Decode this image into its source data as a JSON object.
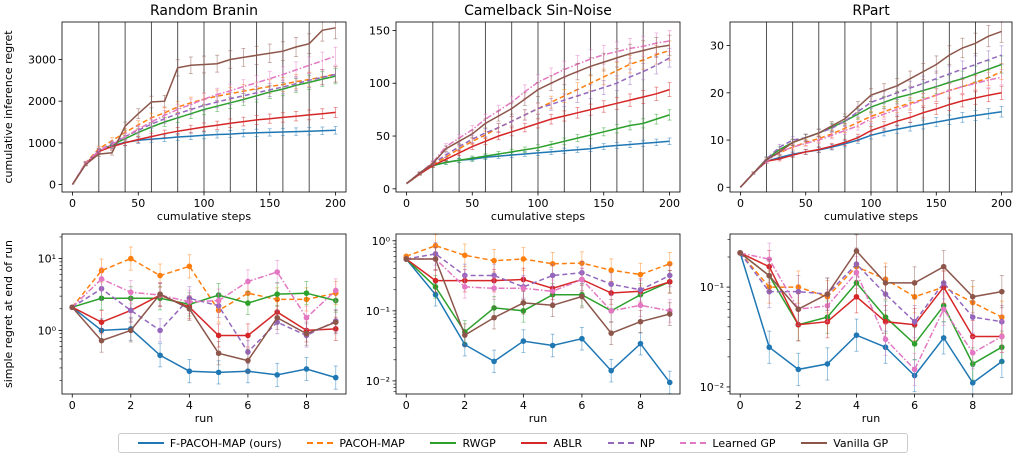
{
  "chart_data": [
    {
      "type": "line",
      "title": "Random Branin",
      "xlabel": "cumulative steps",
      "ylabel": "cumulative inference regret",
      "xlim": [
        -8,
        208
      ],
      "ylim": [
        -180,
        3900
      ],
      "xticks": [
        0,
        50,
        100,
        150,
        200
      ],
      "yticks": [
        0,
        1000,
        2000,
        3000
      ],
      "vlines": [
        20,
        40,
        60,
        80,
        100,
        120,
        140,
        160,
        180
      ],
      "x": [
        0,
        10,
        20,
        30,
        40,
        50,
        60,
        70,
        80,
        90,
        100,
        110,
        120,
        130,
        140,
        150,
        160,
        170,
        180,
        190,
        200
      ],
      "series": [
        {
          "name": "F-PACOH-MAP (ours)",
          "values": [
            0,
            500,
            800,
            930,
            1010,
            1060,
            1090,
            1110,
            1140,
            1160,
            1180,
            1200,
            1210,
            1230,
            1240,
            1250,
            1260,
            1270,
            1280,
            1290,
            1300
          ]
        },
        {
          "name": "PACOH-MAP",
          "values": [
            0,
            520,
            860,
            1050,
            1250,
            1430,
            1600,
            1720,
            1860,
            1960,
            2050,
            2120,
            2180,
            2240,
            2300,
            2350,
            2400,
            2470,
            2520,
            2580,
            2650
          ]
        },
        {
          "name": "RWGP",
          "values": [
            0,
            500,
            800,
            950,
            1100,
            1250,
            1380,
            1500,
            1600,
            1700,
            1800,
            1880,
            1960,
            2040,
            2130,
            2220,
            2290,
            2380,
            2450,
            2530,
            2600
          ]
        },
        {
          "name": "ABLR",
          "values": [
            0,
            500,
            790,
            910,
            1000,
            1080,
            1150,
            1220,
            1280,
            1330,
            1380,
            1420,
            1470,
            1510,
            1550,
            1580,
            1610,
            1640,
            1670,
            1700,
            1730
          ]
        },
        {
          "name": "NP",
          "values": [
            0,
            510,
            820,
            980,
            1150,
            1300,
            1450,
            1580,
            1700,
            1800,
            1900,
            1980,
            2060,
            2130,
            2200,
            2270,
            2340,
            2420,
            2500,
            2570,
            2640
          ]
        },
        {
          "name": "Learned GP",
          "values": [
            0,
            510,
            810,
            960,
            1150,
            1330,
            1500,
            1660,
            1800,
            1920,
            2050,
            2160,
            2250,
            2350,
            2440,
            2540,
            2640,
            2750,
            2860,
            2970,
            3080
          ]
        },
        {
          "name": "Vanilla GP",
          "values": [
            0,
            480,
            730,
            760,
            1400,
            1700,
            1980,
            2000,
            2800,
            2860,
            2880,
            2900,
            3000,
            3050,
            3100,
            3150,
            3200,
            3300,
            3380,
            3700,
            3760
          ]
        }
      ]
    },
    {
      "type": "line",
      "title": "Camelback Sin-Noise",
      "xlabel": "cumulative steps",
      "ylabel": "",
      "xlim": [
        -8,
        208
      ],
      "ylim": [
        -3,
        158
      ],
      "xticks": [
        0,
        50,
        100,
        150,
        200
      ],
      "yticks": [
        0,
        50,
        100,
        150
      ],
      "vlines": [
        20,
        40,
        60,
        80,
        100,
        120,
        140,
        160,
        180
      ],
      "x": [
        0,
        10,
        20,
        30,
        40,
        50,
        60,
        70,
        80,
        90,
        100,
        110,
        120,
        130,
        140,
        150,
        160,
        170,
        180,
        190,
        200
      ],
      "series": [
        {
          "name": "F-PACOH-MAP (ours)",
          "values": [
            5,
            14,
            22,
            25,
            27,
            28,
            30,
            31,
            32,
            33,
            34,
            35,
            36,
            37,
            38,
            40,
            41,
            42,
            43,
            44,
            45
          ]
        },
        {
          "name": "PACOH-MAP",
          "values": [
            5,
            15,
            23,
            30,
            38,
            45,
            51,
            58,
            64,
            70,
            76,
            82,
            88,
            94,
            100,
            106,
            112,
            118,
            122,
            127,
            131
          ]
        },
        {
          "name": "RWGP",
          "values": [
            5,
            14,
            22,
            25,
            27,
            29,
            31,
            33,
            35,
            37,
            39,
            42,
            45,
            48,
            51,
            54,
            57,
            60,
            62,
            66,
            70
          ]
        },
        {
          "name": "ABLR",
          "values": [
            5,
            14,
            22,
            28,
            34,
            40,
            45,
            50,
            54,
            58,
            62,
            66,
            69,
            72,
            75,
            78,
            81,
            84,
            87,
            90,
            94
          ]
        },
        {
          "name": "NP",
          "values": [
            5,
            15,
            24,
            32,
            40,
            47,
            53,
            58,
            64,
            70,
            76,
            80,
            84,
            88,
            92,
            96,
            100,
            106,
            111,
            117,
            124
          ]
        },
        {
          "name": "Learned GP",
          "values": [
            5,
            15,
            25,
            40,
            48,
            56,
            66,
            74,
            82,
            92,
            101,
            107,
            113,
            118,
            123,
            127,
            130,
            133,
            135,
            138,
            140
          ]
        },
        {
          "name": "Vanilla GP",
          "values": [
            5,
            15,
            24,
            38,
            45,
            52,
            62,
            69,
            76,
            85,
            94,
            100,
            106,
            111,
            116,
            120,
            124,
            128,
            131,
            134,
            136
          ]
        }
      ]
    },
    {
      "type": "line",
      "title": "RPart",
      "xlabel": "cumulative steps",
      "ylabel": "",
      "xlim": [
        -8,
        208
      ],
      "ylim": [
        -1,
        35
      ],
      "xticks": [
        0,
        50,
        100,
        150,
        200
      ],
      "yticks": [
        0,
        10,
        20,
        30
      ],
      "vlines": [
        20,
        40,
        60,
        80,
        100,
        120,
        140,
        160,
        180
      ],
      "x": [
        0,
        10,
        20,
        30,
        40,
        50,
        60,
        70,
        80,
        90,
        100,
        110,
        120,
        130,
        140,
        150,
        160,
        170,
        180,
        190,
        200
      ],
      "series": [
        {
          "name": "F-PACOH-MAP (ours)",
          "values": [
            0,
            3,
            5.5,
            6.3,
            7,
            7.5,
            7.9,
            8.5,
            9.2,
            10,
            11,
            11.7,
            12.3,
            12.8,
            13.3,
            13.8,
            14.3,
            14.8,
            15.2,
            15.6,
            16
          ]
        },
        {
          "name": "PACOH-MAP",
          "values": [
            0,
            3,
            6,
            7.3,
            8.5,
            9.5,
            10.3,
            11.3,
            12.5,
            13.7,
            15,
            16,
            17,
            17.8,
            18.6,
            19.5,
            20.5,
            21.3,
            22.2,
            23.2,
            24.5
          ]
        },
        {
          "name": "RWGP",
          "values": [
            0,
            3,
            6,
            8,
            9.5,
            10.5,
            11.5,
            12.7,
            14,
            15.5,
            17,
            18,
            19,
            19.7,
            20.5,
            21.3,
            22.2,
            23,
            24,
            25,
            26
          ]
        },
        {
          "name": "ABLR",
          "values": [
            0,
            3,
            5.5,
            6,
            6.8,
            7.5,
            8,
            8.7,
            9.5,
            10.5,
            12,
            13,
            14,
            14.8,
            15.8,
            16.6,
            17.5,
            18.3,
            18.9,
            19.5,
            20
          ]
        },
        {
          "name": "NP",
          "values": [
            0,
            3,
            6,
            8.5,
            10,
            10.5,
            11.5,
            12.5,
            14,
            16,
            18,
            19,
            20,
            21,
            22,
            23,
            24,
            25,
            26,
            27,
            28
          ]
        },
        {
          "name": "Learned GP",
          "values": [
            0,
            3,
            5.5,
            7.5,
            8.5,
            9.3,
            10,
            11,
            12,
            13,
            14.5,
            15.5,
            16.5,
            17.5,
            18.5,
            19.5,
            20.5,
            21.3,
            22,
            22.7,
            23.3
          ]
        },
        {
          "name": "Vanilla GP",
          "values": [
            0,
            3,
            5.8,
            7.5,
            9.5,
            10.5,
            11.5,
            13,
            14.5,
            17,
            19.5,
            20.5,
            21.5,
            23,
            24.5,
            26,
            28,
            29.5,
            30.5,
            32,
            33
          ]
        }
      ]
    },
    {
      "type": "line",
      "title": "",
      "xlabel": "run",
      "ylabel": "simple regret at end of run",
      "scale": "log",
      "xlim": [
        -0.35,
        9.35
      ],
      "ylim": [
        0.13,
        22
      ],
      "xticks": [
        0,
        2,
        4,
        6,
        8
      ],
      "yticks": [
        1,
        10
      ],
      "ytick_labels": [
        "10⁰",
        "10¹"
      ],
      "x": [
        0,
        1,
        2,
        3,
        4,
        5,
        6,
        7,
        8,
        9
      ],
      "series": [
        {
          "name": "F-PACOH-MAP (ours)",
          "values": [
            2.1,
            1.0,
            1.05,
            0.45,
            0.27,
            0.26,
            0.27,
            0.24,
            0.29,
            0.22
          ]
        },
        {
          "name": "PACOH-MAP",
          "values": [
            2.1,
            6.8,
            10.0,
            5.8,
            7.8,
            1.9,
            3.3,
            2.7,
            2.7,
            3.3
          ]
        },
        {
          "name": "RWGP",
          "values": [
            2.1,
            2.8,
            2.8,
            2.8,
            2.3,
            3.1,
            2.4,
            3.2,
            3.3,
            2.6
          ]
        },
        {
          "name": "ABLR",
          "values": [
            2.1,
            1.3,
            1.9,
            3.1,
            2.1,
            0.85,
            0.85,
            1.8,
            1.0,
            1.05
          ]
        },
        {
          "name": "NP",
          "values": [
            2.1,
            3.8,
            1.9,
            1.0,
            2.8,
            2.2,
            0.5,
            1.3,
            0.85,
            1.35
          ]
        },
        {
          "name": "Learned GP",
          "values": [
            2.1,
            5.2,
            3.4,
            3.1,
            2.5,
            2.6,
            4.8,
            6.5,
            1.5,
            3.6
          ]
        },
        {
          "name": "Vanilla GP",
          "values": [
            2.1,
            0.72,
            1.0,
            3.2,
            2.0,
            0.48,
            0.38,
            1.5,
            0.9,
            1.3
          ]
        }
      ]
    },
    {
      "type": "line",
      "title": "",
      "xlabel": "run",
      "ylabel": "",
      "scale": "log",
      "xlim": [
        -0.35,
        9.35
      ],
      "ylim": [
        0.0065,
        1.25
      ],
      "xticks": [
        0,
        2,
        4,
        6,
        8
      ],
      "yticks": [
        0.01,
        0.1,
        1
      ],
      "ytick_labels": [
        "10⁻²",
        "10⁻¹",
        "10⁰"
      ],
      "x": [
        0,
        1,
        2,
        3,
        4,
        5,
        6,
        7,
        8,
        9
      ],
      "series": [
        {
          "name": "F-PACOH-MAP (ours)",
          "values": [
            0.55,
            0.17,
            0.033,
            0.019,
            0.037,
            0.032,
            0.04,
            0.014,
            0.034,
            0.0095
          ]
        },
        {
          "name": "PACOH-MAP",
          "values": [
            0.6,
            0.85,
            0.62,
            0.52,
            0.55,
            0.47,
            0.48,
            0.38,
            0.33,
            0.47
          ]
        },
        {
          "name": "RWGP",
          "values": [
            0.55,
            0.22,
            0.05,
            0.11,
            0.1,
            0.17,
            0.17,
            0.1,
            0.17,
            0.26
          ]
        },
        {
          "name": "ABLR",
          "values": [
            0.55,
            0.27,
            0.27,
            0.27,
            0.28,
            0.21,
            0.28,
            0.18,
            0.19,
            0.26
          ]
        },
        {
          "name": "NP",
          "values": [
            0.55,
            0.65,
            0.32,
            0.32,
            0.22,
            0.32,
            0.35,
            0.24,
            0.2,
            0.32
          ]
        },
        {
          "name": "Learned GP",
          "values": [
            0.55,
            0.55,
            0.22,
            0.21,
            0.21,
            0.19,
            0.28,
            0.1,
            0.12,
            0.1
          ]
        },
        {
          "name": "Vanilla GP",
          "values": [
            0.55,
            0.55,
            0.045,
            0.08,
            0.13,
            0.12,
            0.16,
            0.048,
            0.07,
            0.09
          ]
        }
      ]
    },
    {
      "type": "line",
      "title": "",
      "xlabel": "run",
      "ylabel": "",
      "scale": "log",
      "xlim": [
        -0.35,
        9.35
      ],
      "ylim": [
        0.0085,
        0.34
      ],
      "xticks": [
        0,
        2,
        4,
        6,
        8
      ],
      "yticks": [
        0.01,
        0.1
      ],
      "ytick_labels": [
        "10⁻²",
        "10⁻¹"
      ],
      "x": [
        0,
        1,
        2,
        3,
        4,
        5,
        6,
        7,
        8,
        9
      ],
      "series": [
        {
          "name": "F-PACOH-MAP (ours)",
          "values": [
            0.22,
            0.025,
            0.015,
            0.017,
            0.033,
            0.025,
            0.013,
            0.031,
            0.011,
            0.018
          ]
        },
        {
          "name": "PACOH-MAP",
          "values": [
            0.22,
            0.1,
            0.1,
            0.08,
            0.16,
            0.12,
            0.08,
            0.1,
            0.07,
            0.05
          ]
        },
        {
          "name": "RWGP",
          "values": [
            0.22,
            0.13,
            0.042,
            0.05,
            0.11,
            0.05,
            0.027,
            0.065,
            0.017,
            0.025
          ]
        },
        {
          "name": "ABLR",
          "values": [
            0.22,
            0.16,
            0.042,
            0.045,
            0.08,
            0.045,
            0.042,
            0.1,
            0.032,
            0.032
          ]
        },
        {
          "name": "NP",
          "values": [
            0.22,
            0.09,
            0.09,
            0.085,
            0.17,
            0.085,
            0.045,
            0.11,
            0.05,
            0.045
          ]
        },
        {
          "name": "Learned GP",
          "values": [
            0.22,
            0.19,
            0.06,
            0.065,
            0.14,
            0.03,
            0.015,
            0.06,
            0.022,
            0.032
          ]
        },
        {
          "name": "Vanilla GP",
          "values": [
            0.22,
            0.13,
            0.06,
            0.085,
            0.23,
            0.11,
            0.11,
            0.16,
            0.08,
            0.09
          ]
        }
      ]
    }
  ],
  "legend": [
    {
      "name": "F-PACOH-MAP (ours)",
      "color": "#1f77b4",
      "style": "solid"
    },
    {
      "name": "PACOH-MAP",
      "color": "#ff7f0e",
      "style": "dashed"
    },
    {
      "name": "RWGP",
      "color": "#2ca02c",
      "style": "solid"
    },
    {
      "name": "ABLR",
      "color": "#d62728",
      "style": "solid"
    },
    {
      "name": "NP",
      "color": "#9467bd",
      "style": "dashed"
    },
    {
      "name": "Learned GP",
      "color": "#e377c2",
      "style": "dashdot"
    },
    {
      "name": "Vanilla GP",
      "color": "#8c564b",
      "style": "solid"
    }
  ]
}
